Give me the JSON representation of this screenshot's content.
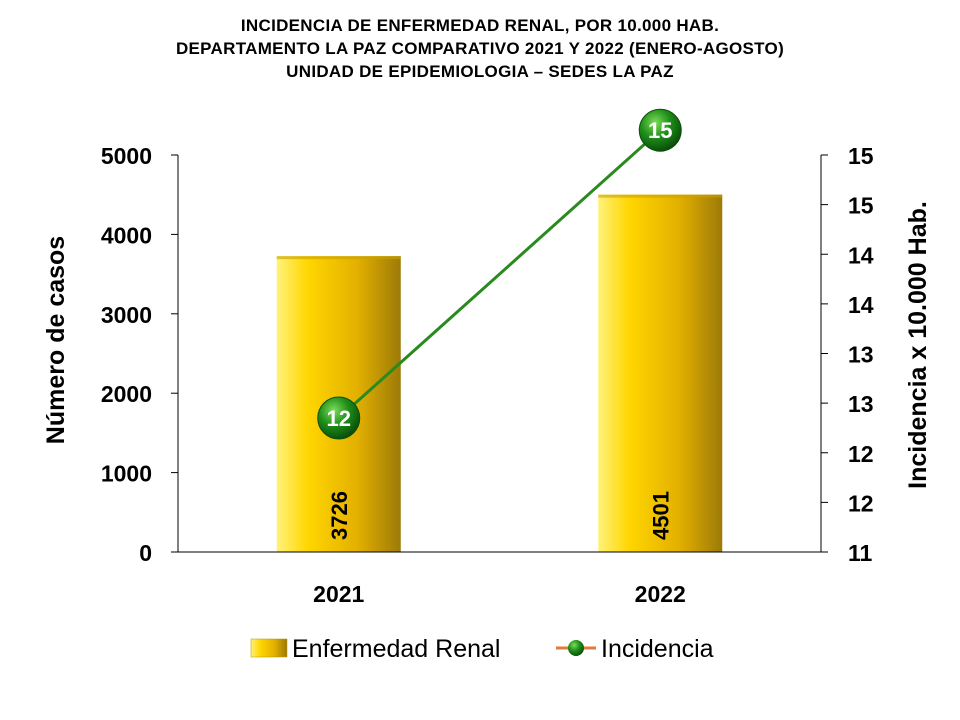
{
  "chart_data": {
    "type": "bar+line",
    "title_lines": [
      "INCIDENCIA  DE  ENFERMEDAD  RENAL,  POR 10.000  HAB.",
      "DEPARTAMENTO  LA  PAZ  COMPARATIVO  2021  Y  2022  (ENERO-AGOSTO)",
      "UNIDAD DE EPIDEMIOLOGIA – SEDES LA PAZ"
    ],
    "categories": [
      "2021",
      "2022"
    ],
    "series": [
      {
        "name": "Enfermedad Renal",
        "type": "bar",
        "axis": "left",
        "values": [
          3726,
          4501
        ],
        "labels": [
          "3726",
          "4501"
        ],
        "color": "#f2c200"
      },
      {
        "name": "Incidencia",
        "type": "line",
        "axis": "right",
        "values": [
          12.35,
          15.25
        ],
        "labels": [
          "12",
          "15"
        ],
        "color": "#2a8a1e"
      }
    ],
    "ylabel_left": "Número de casos",
    "ylabel_right": "Incidencia x 10.000 Hab.",
    "ylim_left": [
      0,
      5000
    ],
    "yticks_left": [
      "0",
      "1000",
      "2000",
      "3000",
      "4000",
      "5000"
    ],
    "ylim_right": [
      11,
      15
    ],
    "yticks_right": [
      "11",
      "12",
      "12",
      "13",
      "13",
      "14",
      "14",
      "15",
      "15"
    ],
    "legend": [
      "Enfermedad Renal",
      "Incidencia"
    ],
    "legend_position": "bottom"
  }
}
